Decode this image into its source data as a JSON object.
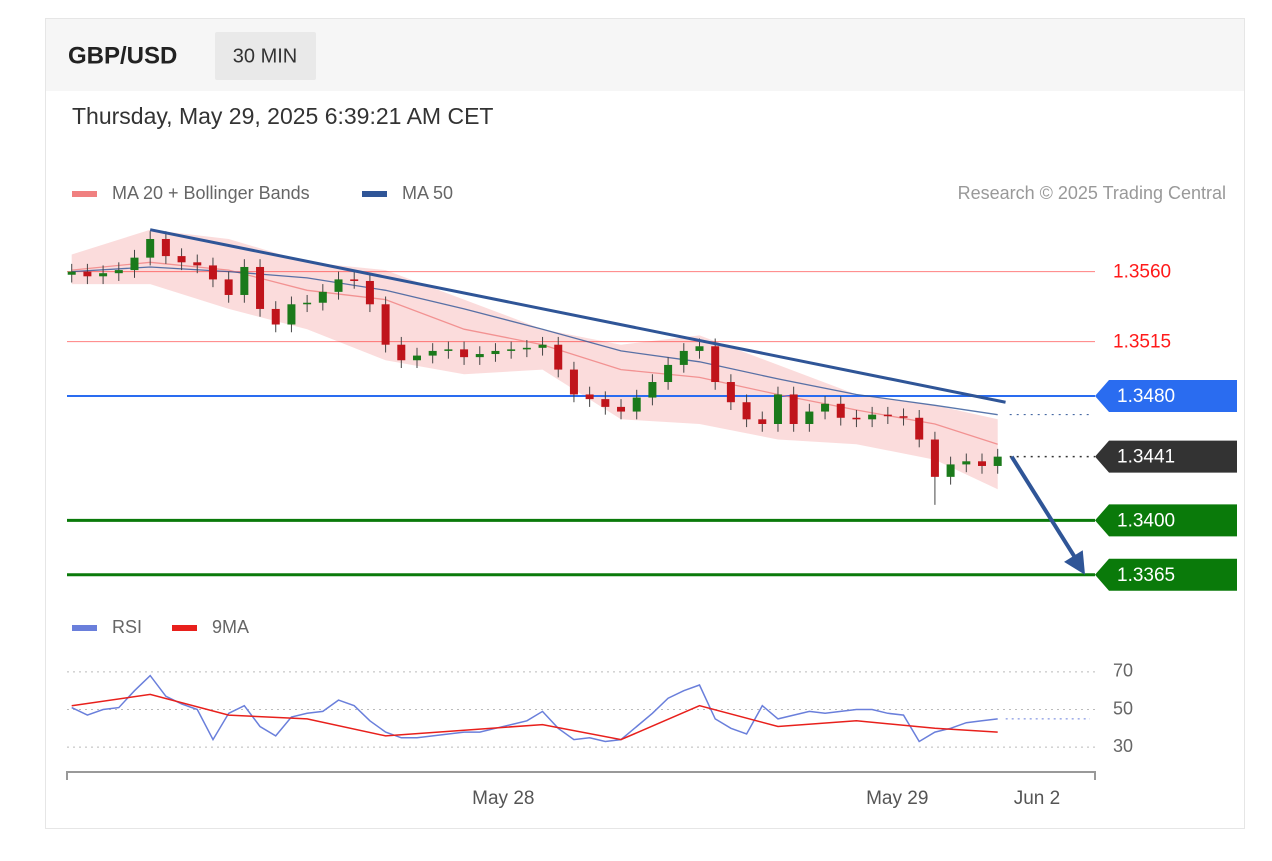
{
  "header": {
    "symbol": "GBP/USD",
    "interval": "30 MIN",
    "timestamp": "Thursday, May 29, 2025 6:39:21 AM CET"
  },
  "chart_data": [
    {
      "type": "candlestick",
      "source": "Research © 2025 Trading Central",
      "ylim": [
        1.3352,
        1.359
      ],
      "candles": {
        "up_color": "#1b7a1b",
        "down_color": "#c0141b",
        "open": [
          1.3558,
          1.356,
          1.3557,
          1.3559,
          1.3561,
          1.3569,
          1.3581,
          1.357,
          1.3566,
          1.3564,
          1.3555,
          1.3545,
          1.3563,
          1.3536,
          1.3526,
          1.3539,
          1.354,
          1.3547,
          1.3555,
          1.3554,
          1.3539,
          1.3513,
          1.3503,
          1.3506,
          1.3509,
          1.351,
          1.3505,
          1.3507,
          1.3509,
          1.351,
          1.3511,
          1.3513,
          1.3497,
          1.3481,
          1.3478,
          1.3473,
          1.347,
          1.3479,
          1.3489,
          1.35,
          1.3509,
          1.3512,
          1.3489,
          1.3476,
          1.3465,
          1.3462,
          1.3481,
          1.3462,
          1.347,
          1.3475,
          1.3466,
          1.3465,
          1.3468,
          1.3467,
          1.3466,
          1.3452,
          1.3428,
          1.3436,
          1.3438,
          1.3435
        ],
        "high": [
          1.3565,
          1.3565,
          1.3564,
          1.3566,
          1.3574,
          1.3586,
          1.3586,
          1.3575,
          1.3571,
          1.3569,
          1.356,
          1.3568,
          1.3568,
          1.3541,
          1.3544,
          1.3545,
          1.3552,
          1.356,
          1.356,
          1.3559,
          1.3544,
          1.3518,
          1.3511,
          1.3514,
          1.3515,
          1.3515,
          1.3512,
          1.3514,
          1.3515,
          1.3516,
          1.3518,
          1.3518,
          1.3502,
          1.3486,
          1.3483,
          1.3478,
          1.3484,
          1.3494,
          1.3505,
          1.3514,
          1.3517,
          1.3517,
          1.3494,
          1.3481,
          1.347,
          1.3486,
          1.3486,
          1.3475,
          1.348,
          1.348,
          1.3471,
          1.3473,
          1.3473,
          1.3472,
          1.3471,
          1.3457,
          1.3441,
          1.3443,
          1.3443,
          1.3446
        ],
        "low": [
          1.3553,
          1.3552,
          1.3552,
          1.3554,
          1.3556,
          1.3564,
          1.3565,
          1.3561,
          1.3559,
          1.355,
          1.354,
          1.354,
          1.3531,
          1.3521,
          1.3521,
          1.3534,
          1.3535,
          1.3542,
          1.3549,
          1.3534,
          1.3508,
          1.3498,
          1.3498,
          1.3501,
          1.3504,
          1.35,
          1.35,
          1.3502,
          1.3504,
          1.3505,
          1.3506,
          1.3492,
          1.3476,
          1.3473,
          1.3468,
          1.3465,
          1.3465,
          1.3474,
          1.3484,
          1.3495,
          1.3504,
          1.3484,
          1.3471,
          1.346,
          1.3457,
          1.3457,
          1.3457,
          1.3457,
          1.3465,
          1.3461,
          1.346,
          1.346,
          1.3462,
          1.3461,
          1.3447,
          1.341,
          1.3423,
          1.3431,
          1.343,
          1.343
        ],
        "close": [
          1.356,
          1.3557,
          1.3559,
          1.3561,
          1.3569,
          1.3581,
          1.357,
          1.3566,
          1.3564,
          1.3555,
          1.3545,
          1.3563,
          1.3536,
          1.3526,
          1.3539,
          1.354,
          1.3547,
          1.3555,
          1.3554,
          1.3539,
          1.3513,
          1.3503,
          1.3506,
          1.3509,
          1.351,
          1.3505,
          1.3507,
          1.3509,
          1.351,
          1.3511,
          1.3513,
          1.3497,
          1.3481,
          1.3478,
          1.3473,
          1.347,
          1.3479,
          1.3489,
          1.35,
          1.3509,
          1.3512,
          1.3489,
          1.3476,
          1.3465,
          1.3462,
          1.3481,
          1.3462,
          1.347,
          1.3475,
          1.3466,
          1.3465,
          1.3468,
          1.3467,
          1.3466,
          1.3452,
          1.3428,
          1.3436,
          1.3438,
          1.3435,
          1.3441
        ]
      },
      "series": [
        {
          "name": "MA 20 + Bollinger Bands",
          "color": "#f08080",
          "x": [
            0,
            5,
            10,
            15,
            20,
            25,
            30,
            35,
            40,
            45,
            50,
            55,
            59
          ],
          "values": [
            1.3561,
            1.3566,
            1.3561,
            1.3548,
            1.3542,
            1.3523,
            1.3513,
            1.3497,
            1.3492,
            1.3481,
            1.3471,
            1.3462,
            1.3449
          ],
          "upper": [
            1.3571,
            1.3587,
            1.3581,
            1.3566,
            1.3561,
            1.3542,
            1.3523,
            1.3513,
            1.3519,
            1.35,
            1.3481,
            1.3474,
            1.3465
          ],
          "lower": [
            1.3552,
            1.3552,
            1.3536,
            1.3523,
            1.3503,
            1.3494,
            1.3497,
            1.3465,
            1.3462,
            1.3452,
            1.3449,
            1.3439,
            1.342
          ]
        },
        {
          "name": "MA 50",
          "color": "#2f5597",
          "x": [
            0,
            5,
            10,
            15,
            20,
            25,
            30,
            35,
            40,
            45,
            50,
            55,
            59
          ],
          "values": [
            1.356,
            1.3563,
            1.356,
            1.3556,
            1.3548,
            1.3536,
            1.3523,
            1.3509,
            1.3502,
            1.3491,
            1.3481,
            1.3474,
            1.3468
          ]
        }
      ],
      "trendline": {
        "color": "#2f5597",
        "x": [
          5,
          59.5
        ],
        "values": [
          1.3587,
          1.3476
        ]
      },
      "levels": [
        {
          "value": 1.356,
          "label": "1.3560",
          "color": "#ff1a1a",
          "style": "text",
          "line": "solid",
          "width": 1
        },
        {
          "value": 1.3515,
          "label": "1.3515",
          "color": "#ff1a1a",
          "style": "text",
          "line": "solid",
          "width": 1
        },
        {
          "value": 1.348,
          "label": "1.3480",
          "color": "#2a6cf0",
          "style": "tag",
          "line": "solid",
          "width": 2
        },
        {
          "value": 1.3441,
          "label": "1.3441",
          "color": "#333333",
          "style": "tag",
          "line": "dotted",
          "width": 1.5
        },
        {
          "value": 1.34,
          "label": "1.3400",
          "color": "#0a7a0a",
          "style": "tag",
          "line": "solid",
          "width": 3
        },
        {
          "value": 1.3365,
          "label": "1.3365",
          "color": "#0a7a0a",
          "style": "tag",
          "line": "solid",
          "width": 3
        }
      ]
    },
    {
      "type": "line",
      "ylim": [
        20,
        80
      ],
      "yticks": [
        70,
        50,
        30
      ],
      "xlim": [
        -0.3,
        65.2
      ],
      "xticks": [
        {
          "value": 27.5,
          "label": "May 28"
        },
        {
          "value": 52.6,
          "label": "May 29"
        },
        {
          "value": 61.5,
          "label": "Jun 2"
        }
      ],
      "series": [
        {
          "name": "RSI",
          "color": "#6a7fdb",
          "values": [
            51,
            47,
            50,
            51,
            60,
            68,
            57,
            53,
            50,
            34,
            48,
            52,
            41,
            36,
            46,
            48,
            49,
            55,
            52,
            44,
            38,
            35,
            35,
            36,
            37,
            38,
            38,
            40,
            42,
            44,
            49,
            40,
            34,
            35,
            33,
            34,
            41,
            48,
            56,
            60,
            63,
            45,
            40,
            37,
            52,
            45,
            47,
            49,
            48,
            49,
            50,
            50,
            48,
            47,
            33,
            38,
            40,
            43,
            44,
            45
          ]
        },
        {
          "name": "9MA",
          "color": "#e8201c",
          "x": [
            0,
            5,
            10,
            15,
            20,
            25,
            30,
            35,
            40,
            45,
            50,
            55,
            59
          ],
          "values": [
            52,
            58,
            47,
            45,
            36,
            39,
            42,
            34,
            52,
            41,
            44,
            40,
            38
          ]
        }
      ]
    }
  ]
}
